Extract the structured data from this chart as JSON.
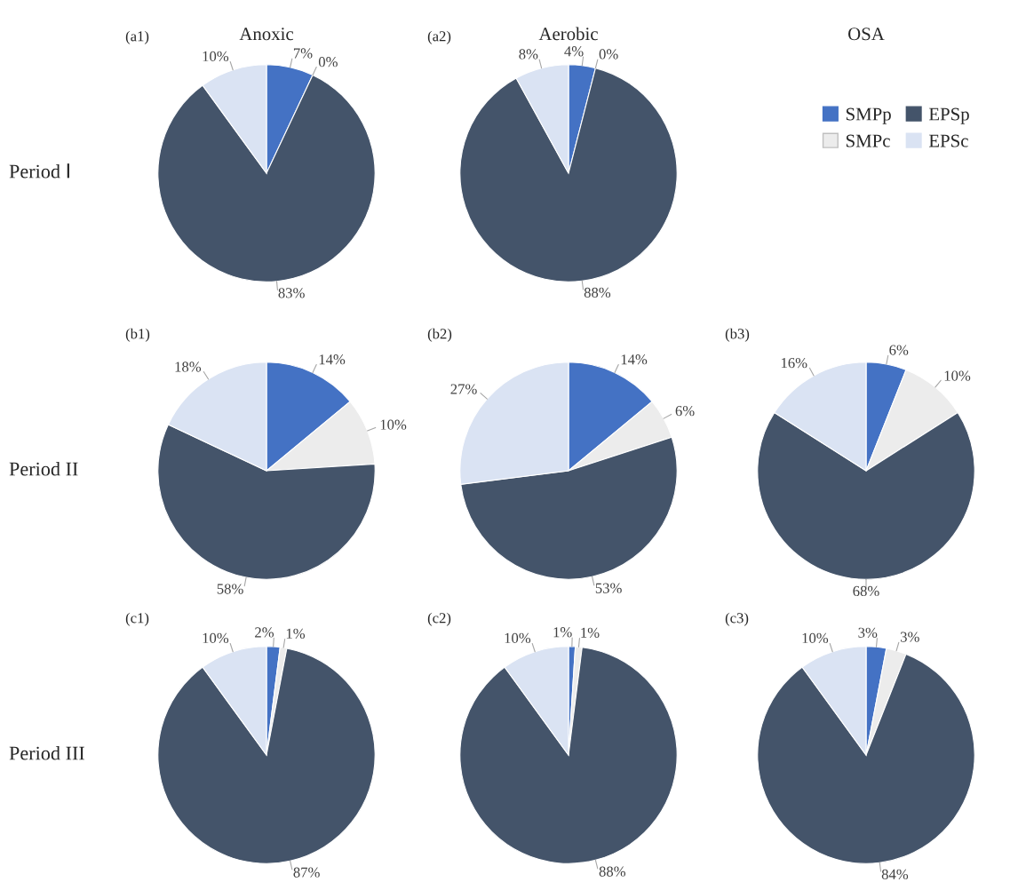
{
  "chart_data": [
    {
      "type": "pie",
      "title": "(a1)",
      "categories": [
        "SMPp",
        "SMPc",
        "EPSp",
        "EPSc"
      ],
      "values": [
        7,
        0,
        83,
        10
      ],
      "value_labels": [
        "7%",
        "0%",
        "83%",
        "10%"
      ],
      "colors": [
        "#4472c4",
        "#ececec",
        "#44546a",
        "#dae3f3"
      ],
      "legend": "right"
    },
    {
      "type": "pie",
      "title": "(a2)",
      "categories": [
        null,
        null,
        null,
        null
      ],
      "values": [
        4,
        0,
        88,
        8
      ],
      "value_labels": [
        "4%",
        "0%",
        "88%",
        "8%"
      ],
      "colors": [
        "#4472c4",
        "#ececec",
        "#44546a",
        "#dae3f3"
      ]
    },
    {
      "type": "pie",
      "title": "(b1)",
      "categories": [
        null,
        null,
        null,
        null
      ],
      "values": [
        14,
        10,
        58,
        18
      ],
      "value_labels": [
        "14%",
        "10%",
        "58%",
        "18%"
      ],
      "colors": [
        "#4472c4",
        "#ececec",
        "#44546a",
        "#dae3f3"
      ]
    },
    {
      "type": "pie",
      "title": "(b2)",
      "categories": [
        null,
        null,
        null,
        null
      ],
      "values": [
        14,
        6,
        53,
        27
      ],
      "value_labels": [
        "14%",
        "6%",
        "53%",
        "27%"
      ],
      "colors": [
        "#4472c4",
        "#ececec",
        "#44546a",
        "#dae3f3"
      ]
    },
    {
      "type": "pie",
      "title": "(b3)",
      "categories": [
        null,
        null,
        null,
        null
      ],
      "values": [
        6,
        10,
        68,
        16
      ],
      "value_labels": [
        "6%",
        "10%",
        "68%",
        "16%"
      ],
      "colors": [
        "#4472c4",
        "#ececec",
        "#44546a",
        "#dae3f3"
      ]
    },
    {
      "type": "pie",
      "title": "(c1)",
      "categories": [
        null,
        null,
        null,
        null
      ],
      "values": [
        2,
        1,
        87,
        10
      ],
      "value_labels": [
        "2%",
        "1%",
        "87%",
        "10%"
      ],
      "colors": [
        "#4472c4",
        "#ececec",
        "#44546a",
        "#dae3f3"
      ]
    },
    {
      "type": "pie",
      "title": "(c2)",
      "categories": [
        null,
        null,
        null,
        null
      ],
      "values": [
        1,
        1,
        88,
        10
      ],
      "value_labels": [
        "1%",
        "1%",
        "88%",
        "10%"
      ],
      "colors": [
        "#4472c4",
        "#ececec",
        "#44546a",
        "#dae3f3"
      ]
    },
    {
      "type": "pie",
      "title": "(c3)",
      "categories": [
        null,
        null,
        null,
        null
      ],
      "values": [
        3,
        3,
        84,
        10
      ],
      "value_labels": [
        "3%",
        "3%",
        "84%",
        "10%"
      ],
      "colors": [
        "#4472c4",
        "#ececec",
        "#44546a",
        "#dae3f3"
      ]
    },
    {
      "type": "other",
      "annotations": [
        "Anoxic",
        "Aerobic",
        "OSA",
        "Period Ⅰ",
        "Period II",
        "Period III"
      ]
    }
  ]
}
